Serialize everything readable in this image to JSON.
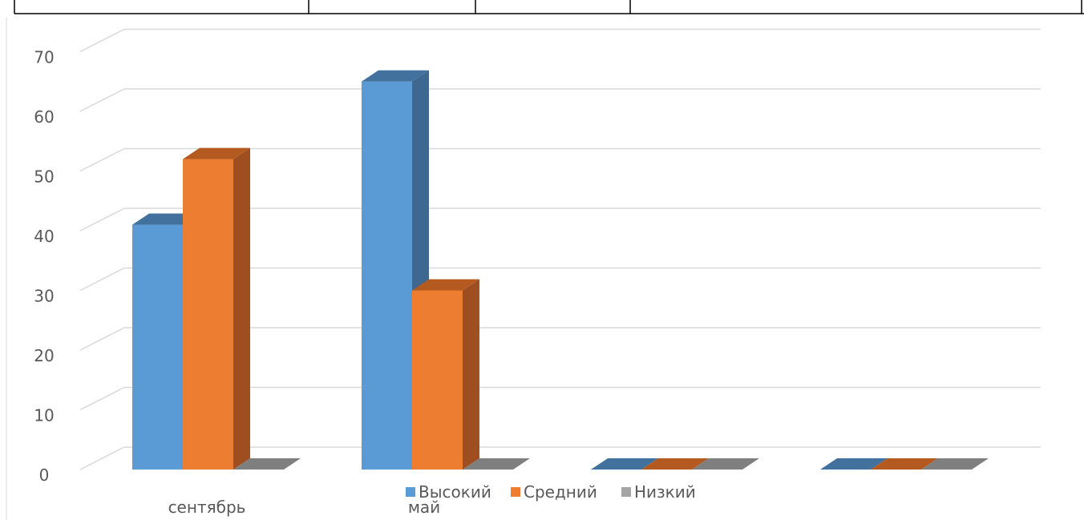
{
  "chart_data": {
    "type": "bar",
    "categories": [
      "сентябрь",
      "май",
      "",
      ""
    ],
    "series": [
      {
        "name": "Высокий",
        "values": [
          41,
          65,
          0,
          0
        ],
        "color": "#5B9BD5",
        "side": "#3E6890",
        "top": "#41719C"
      },
      {
        "name": "Средний",
        "values": [
          52,
          30,
          0,
          0
        ],
        "color": "#ED7D31",
        "side": "#9E4E1F",
        "top": "#B45A20"
      },
      {
        "name": "Низкий",
        "values": [
          0,
          0,
          0,
          0
        ],
        "color": "#A5A5A5",
        "side": "#6F6F6F",
        "top": "#7F7F7F"
      }
    ],
    "ylim": [
      0,
      70
    ],
    "yticks": [
      0,
      10,
      20,
      30,
      40,
      50,
      60,
      70
    ],
    "grid": true,
    "legend_position": "bottom"
  }
}
